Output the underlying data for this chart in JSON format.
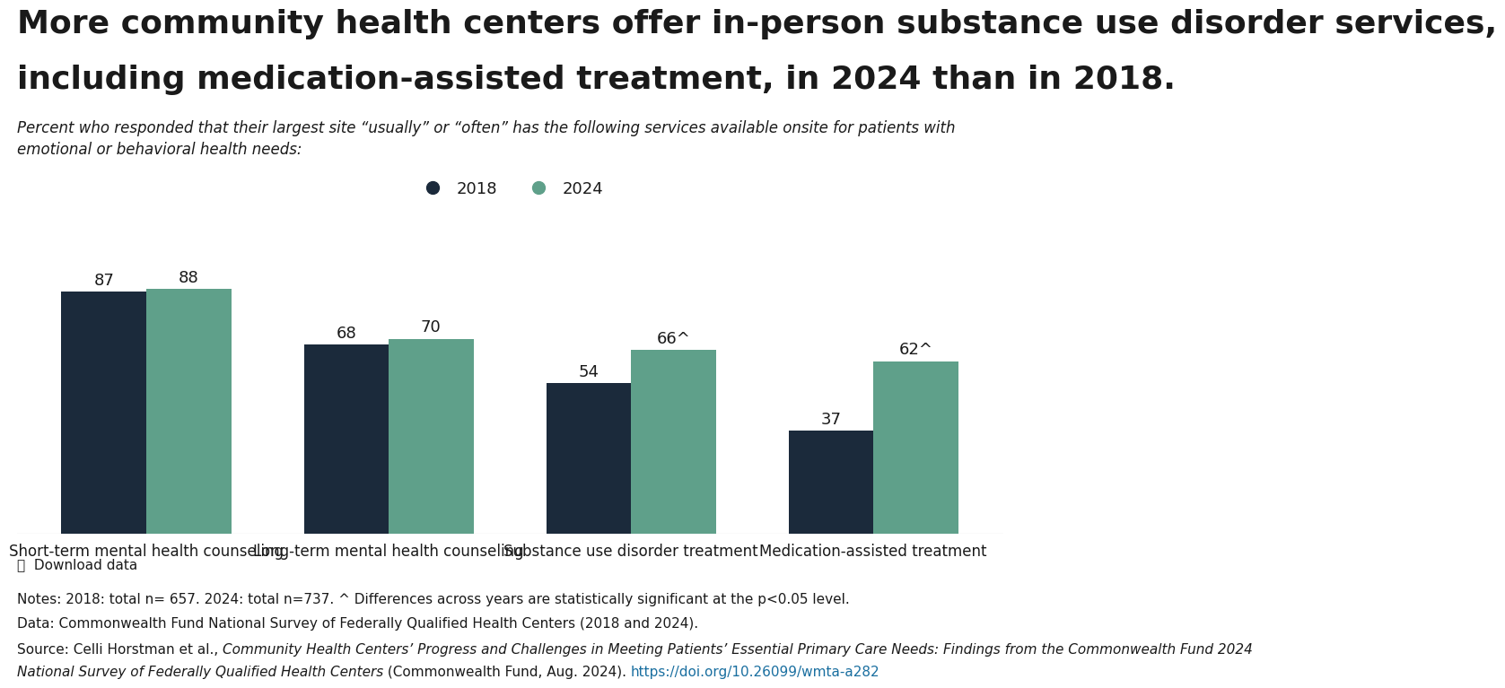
{
  "title_line1": "More community health centers offer in-person substance use disorder services,",
  "title_line2": "including medication-assisted treatment, in 2024 than in 2018.",
  "subtitle": "Percent who responded that their largest site “usually” or “often” has the following services available onsite for patients with\nemotional or behavioral health needs:",
  "categories": [
    "Short-term mental health counseling",
    "Long-term mental health counseling",
    "Substance use disorder treatment",
    "Medication-assisted treatment"
  ],
  "values_2018": [
    87,
    68,
    54,
    37
  ],
  "values_2024": [
    88,
    70,
    66,
    62
  ],
  "labels_2018": [
    "87",
    "68",
    "54",
    "37"
  ],
  "labels_2024": [
    "88",
    "70",
    "66^",
    "62^"
  ],
  "color_2018": "#1b2a3b",
  "color_2024": "#5fa08a",
  "bar_width": 0.35,
  "ylim": [
    0,
    100
  ],
  "legend_labels": [
    "2018",
    "2024"
  ],
  "notes_line1": "Notes: 2018: total n= 657. 2024: total n=737. ^ Differences across years are statistically significant at the p<0.05 level.",
  "notes_line2": "Data: Commonwealth Fund National Survey of Federally Qualified Health Centers (2018 and 2024).",
  "source_normal1": "Source: Celli Horstman et al., ",
  "source_italic": "Community Health Centers’ Progress and Challenges in Meeting Patients’ Essential Primary Care Needs: Findings from the Commonwealth Fund 2024",
  "source_italic2": "National Survey of Federally Qualified Health Centers",
  "source_normal2": " (Commonwealth Fund, Aug. 2024). ",
  "source_url": "https://doi.org/10.26099/wmta-a282",
  "download_label": "Download data",
  "background_color": "#ffffff",
  "text_color": "#1a1a1a",
  "label_fontsize": 13,
  "axis_label_fontsize": 12,
  "title_fontsize": 26,
  "subtitle_fontsize": 12,
  "notes_fontsize": 11
}
